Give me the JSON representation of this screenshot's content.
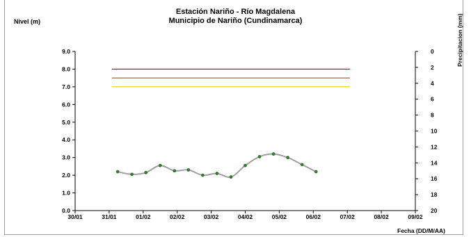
{
  "chart_data": {
    "type": "line",
    "title": "Estación Nariño  - Río Magdalena",
    "subtitle": "Municipio de Nariño (Cundinamarca)",
    "ylabel": "Nivel (m)",
    "y2label": "Precipitacion (mm)",
    "xlabel": "Fecha (DD/M/AA)",
    "x_tick_labels": [
      "30/01",
      "31/01",
      "01/02",
      "02/02",
      "03/02",
      "04/02",
      "05/02",
      "06/02",
      "07/02",
      "08/02",
      "09/02"
    ],
    "ylim": [
      0,
      9
    ],
    "y_tick_labels": [
      "0.0",
      "1.0",
      "2.0",
      "3.0",
      "4.0",
      "5.0",
      "6.0",
      "7.0",
      "8.0",
      "9.0"
    ],
    "y2lim": [
      0,
      20
    ],
    "y2_inverted": true,
    "y2_tick_labels": [
      "0",
      "2",
      "4",
      "6",
      "8",
      "10",
      "12",
      "14",
      "16",
      "18",
      "20"
    ],
    "grid": false,
    "series": [
      {
        "color": "#2e7d2e",
        "line_color": "#a0a0a0",
        "x": [
          1.25,
          1.67,
          2.08,
          2.5,
          2.92,
          3.33,
          3.75,
          4.17,
          4.58,
          5.0,
          5.42,
          5.83,
          6.25,
          6.67,
          7.08
        ],
        "values": [
          2.2,
          2.05,
          2.15,
          2.55,
          2.25,
          2.3,
          2.0,
          2.1,
          1.9,
          2.55,
          3.05,
          3.2,
          3.0,
          2.6,
          2.2
        ]
      }
    ],
    "threshold_lines": [
      {
        "value": 8.0,
        "color": "#c00000",
        "x_range": [
          1.08,
          8.08
        ]
      },
      {
        "value": 7.5,
        "color": "#8b5a3c",
        "x_range": [
          1.08,
          8.08
        ]
      },
      {
        "value": 7.0,
        "color": "#f2d400",
        "x_range": [
          1.08,
          8.08
        ]
      }
    ]
  }
}
